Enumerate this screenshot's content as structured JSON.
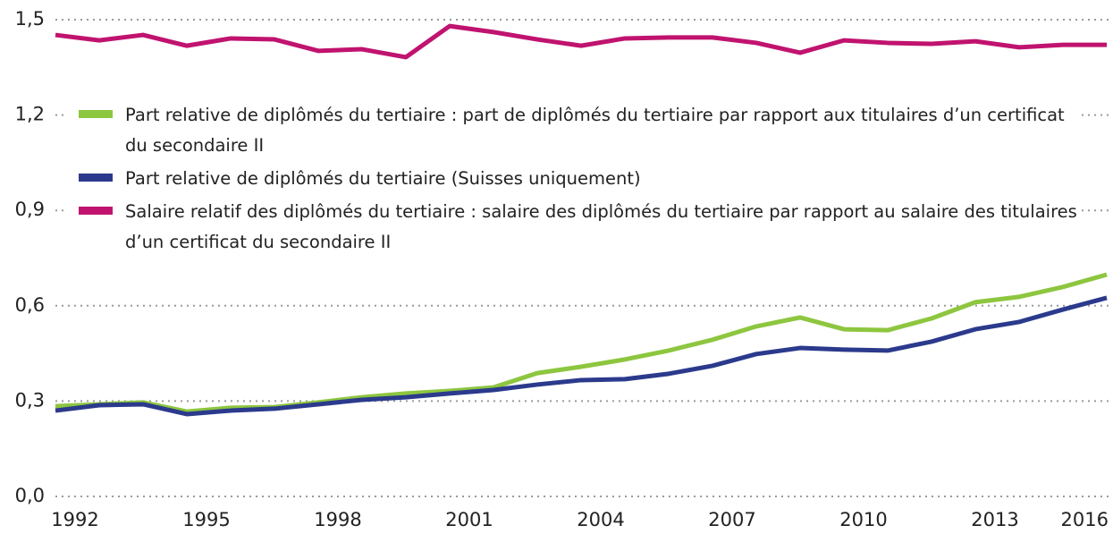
{
  "chart_data": {
    "type": "line",
    "x": [
      1992,
      1993,
      1994,
      1995,
      1996,
      1997,
      1998,
      1999,
      2000,
      2001,
      2002,
      2003,
      2004,
      2005,
      2006,
      2007,
      2008,
      2009,
      2010,
      2011,
      2012,
      2013,
      2014,
      2015,
      2016
    ],
    "xlim": [
      1992,
      2016
    ],
    "xticks": [
      1992,
      1995,
      1998,
      2001,
      2004,
      2007,
      2010,
      2013,
      2016
    ],
    "ylim": [
      0,
      1.5
    ],
    "yticks": [
      {
        "value": 0,
        "label": "0,0"
      },
      {
        "value": 0.3,
        "label": "0,3"
      },
      {
        "value": 0.6,
        "label": "0,6"
      },
      {
        "value": 0.9,
        "label": "0,9"
      },
      {
        "value": 1.2,
        "label": "1,2"
      },
      {
        "value": 1.5,
        "label": "1,5"
      }
    ],
    "grid": true,
    "series": [
      {
        "name": "Part relative de diplômés du tertiaire : part de diplômés du tertiaire par rapport aux titulaires d’un certificat du secondaire II",
        "color": "#8dc63f",
        "values": [
          0.284,
          0.29,
          0.296,
          0.267,
          0.279,
          0.281,
          0.296,
          0.312,
          0.324,
          0.332,
          0.343,
          0.388,
          0.408,
          0.431,
          0.459,
          0.493,
          0.535,
          0.563,
          0.526,
          0.523,
          0.56,
          0.611,
          0.628,
          0.659,
          0.698
        ]
      },
      {
        "name": "Part relative de diplômés du tertiaire (Suisses uniquement)",
        "color": "#2b3a8c",
        "values": [
          0.27,
          0.287,
          0.29,
          0.259,
          0.27,
          0.276,
          0.29,
          0.304,
          0.312,
          0.324,
          0.335,
          0.352,
          0.366,
          0.369,
          0.386,
          0.411,
          0.448,
          0.467,
          0.462,
          0.459,
          0.487,
          0.526,
          0.549,
          0.588,
          0.625
        ]
      },
      {
        "name": "Salaire relatif des diplômés du tertiaire : salaire des diplômés du tertiaire par rapport au salaire des titulaires d’un certificat du secondaire II",
        "color": "#c0136f",
        "values": [
          1.452,
          1.435,
          1.452,
          1.418,
          1.441,
          1.438,
          1.402,
          1.407,
          1.382,
          1.48,
          1.461,
          1.438,
          1.418,
          1.441,
          1.444,
          1.444,
          1.427,
          1.396,
          1.435,
          1.427,
          1.424,
          1.432,
          1.413,
          1.421,
          1.421
        ]
      }
    ]
  }
}
